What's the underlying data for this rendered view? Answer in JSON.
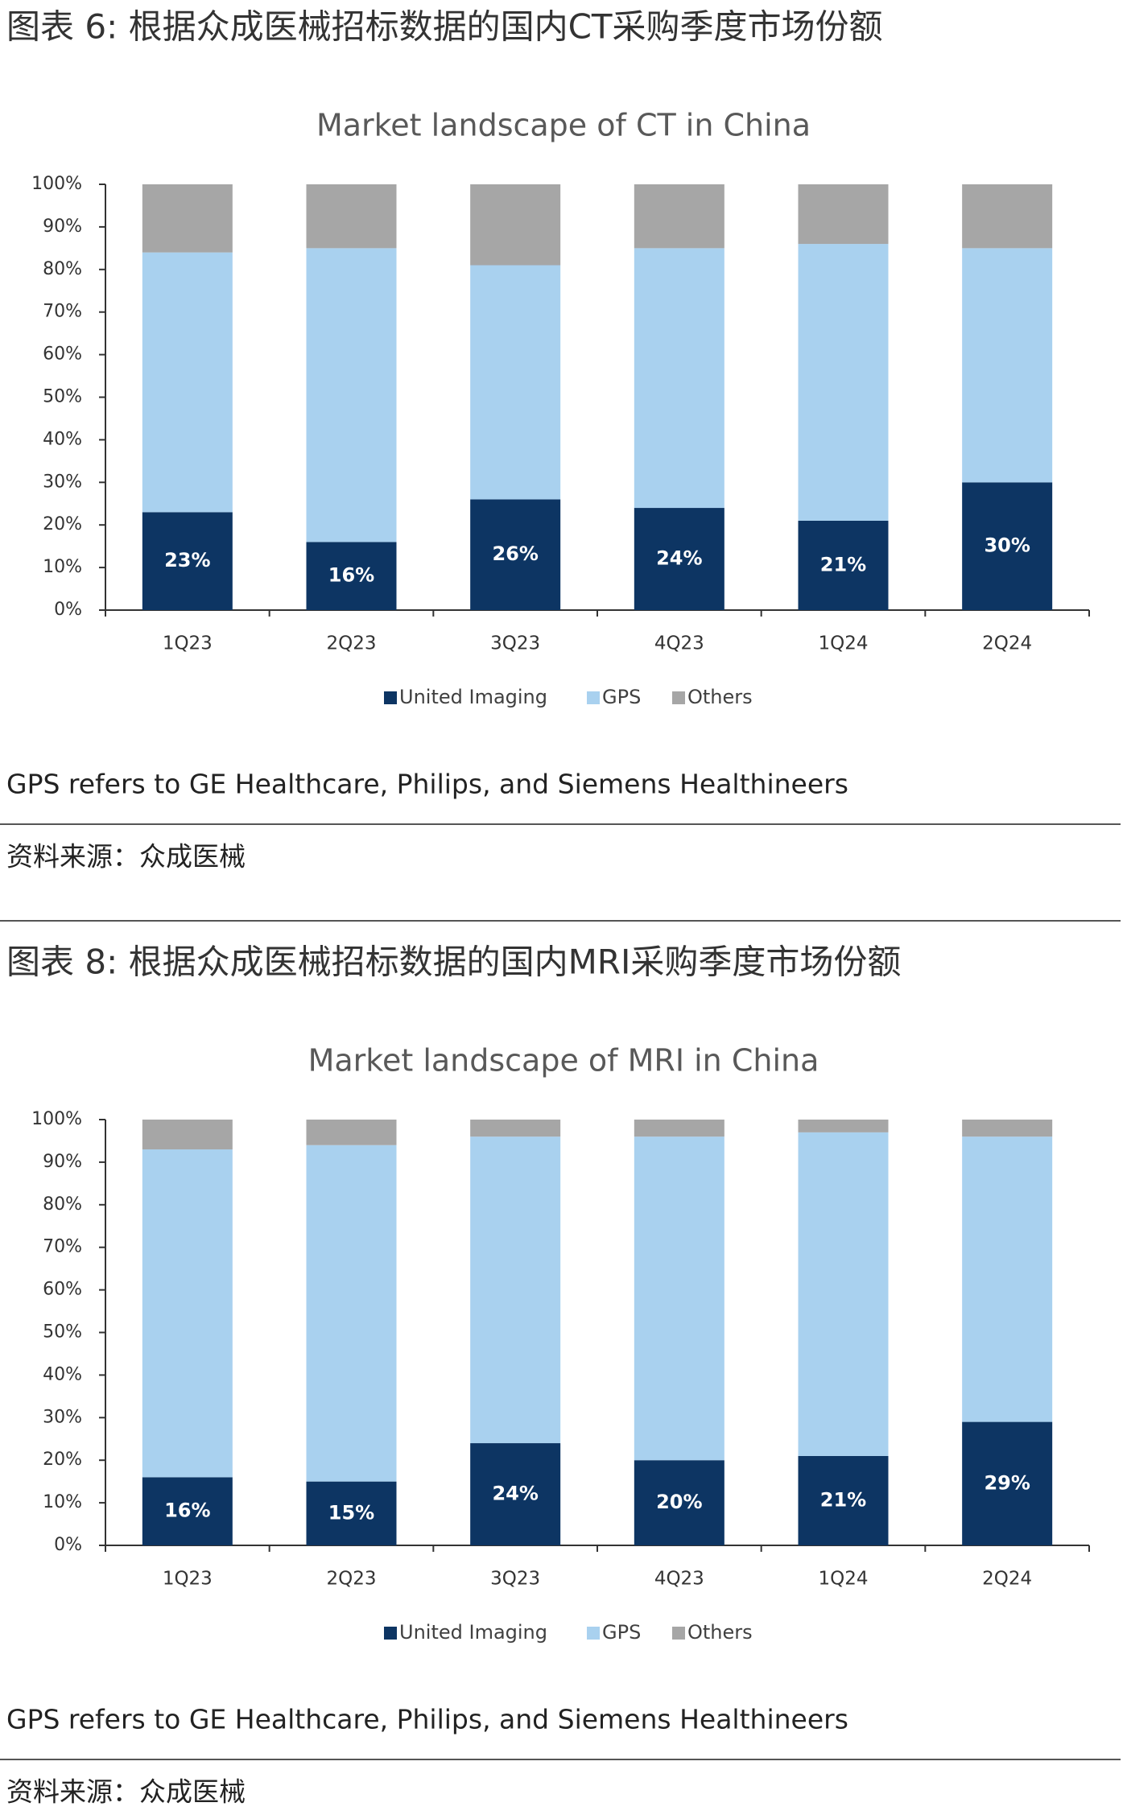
{
  "chart_data": [
    {
      "type": "stacked_bar",
      "heading": "图表 6: 根据众成医械招标数据的国内CT采购季度市场份额",
      "title": "Market landscape of CT in China",
      "categories": [
        "1Q23",
        "2Q23",
        "3Q23",
        "4Q23",
        "1Q24",
        "2Q24"
      ],
      "series": [
        {
          "name": "United Imaging",
          "color": "#0d3563",
          "values": [
            23,
            16,
            26,
            24,
            21,
            30
          ],
          "value_labels": [
            "23%",
            "16%",
            "26%",
            "24%",
            "21%",
            "30%"
          ]
        },
        {
          "name": "GPS",
          "color": "#a9d1ef",
          "values": [
            61,
            69,
            55,
            61,
            65,
            55
          ]
        },
        {
          "name": "Others",
          "color": "#a6a6a6",
          "values": [
            16,
            15,
            19,
            15,
            14,
            15
          ]
        }
      ],
      "ylim": [
        0,
        100
      ],
      "yticks": [
        {
          "value": 0,
          "label": "0%"
        },
        {
          "value": 10,
          "label": "10%"
        },
        {
          "value": 20,
          "label": "20%"
        },
        {
          "value": 30,
          "label": "30%"
        },
        {
          "value": 40,
          "label": "40%"
        },
        {
          "value": 50,
          "label": "50%"
        },
        {
          "value": 60,
          "label": "60%"
        },
        {
          "value": 70,
          "label": "70%"
        },
        {
          "value": 80,
          "label": "80%"
        },
        {
          "value": 90,
          "label": "90%"
        },
        {
          "value": 100,
          "label": "100%"
        }
      ],
      "legend": "bottom",
      "note": "GPS refers to GE Healthcare, Philips, and Siemens Healthineers",
      "source": "资料来源：众成医械"
    },
    {
      "type": "stacked_bar",
      "heading": "图表 8: 根据众成医械招标数据的国内MRI采购季度市场份额",
      "title": "Market landscape of MRI in China",
      "categories": [
        "1Q23",
        "2Q23",
        "3Q23",
        "4Q23",
        "1Q24",
        "2Q24"
      ],
      "series": [
        {
          "name": "United Imaging",
          "color": "#0d3563",
          "values": [
            16,
            15,
            24,
            20,
            21,
            29
          ],
          "value_labels": [
            "16%",
            "15%",
            "24%",
            "20%",
            "21%",
            "29%"
          ]
        },
        {
          "name": "GPS",
          "color": "#a9d1ef",
          "values": [
            77,
            79,
            72,
            76,
            76,
            67
          ]
        },
        {
          "name": "Others",
          "color": "#a6a6a6",
          "values": [
            7,
            6,
            4,
            4,
            3,
            4
          ]
        }
      ],
      "ylim": [
        0,
        100
      ],
      "yticks": [
        {
          "value": 0,
          "label": "0%"
        },
        {
          "value": 10,
          "label": "10%"
        },
        {
          "value": 20,
          "label": "20%"
        },
        {
          "value": 30,
          "label": "30%"
        },
        {
          "value": 40,
          "label": "40%"
        },
        {
          "value": 50,
          "label": "50%"
        },
        {
          "value": 60,
          "label": "60%"
        },
        {
          "value": 70,
          "label": "70%"
        },
        {
          "value": 80,
          "label": "80%"
        },
        {
          "value": 90,
          "label": "90%"
        },
        {
          "value": 100,
          "label": "100%"
        }
      ],
      "legend": "bottom",
      "note": "GPS refers to GE Healthcare, Philips, and Siemens Healthineers",
      "source": "资料来源：众成医械"
    }
  ]
}
